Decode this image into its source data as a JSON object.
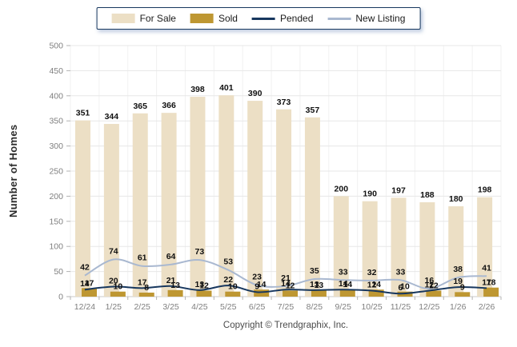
{
  "legend": {
    "items": [
      {
        "label": "For Sale",
        "type": "bar",
        "color": "#ECDFC5"
      },
      {
        "label": "Sold",
        "type": "bar",
        "color": "#BE9732"
      },
      {
        "label": "Pended",
        "type": "line",
        "color": "#17375E"
      },
      {
        "label": "New Listing",
        "type": "line",
        "color": "#A9B8D0"
      }
    ]
  },
  "chart_data": {
    "type": "bar+line",
    "categories": [
      "12/24",
      "1/25",
      "2/25",
      "3/25",
      "4/25",
      "5/25",
      "6/25",
      "7/25",
      "8/25",
      "9/25",
      "10/25",
      "11/25",
      "12/25",
      "1/26",
      "2/26"
    ],
    "series": [
      {
        "name": "For Sale",
        "type": "bar",
        "color": "#ECDFC5",
        "values": [
          351,
          344,
          365,
          366,
          398,
          401,
          390,
          373,
          357,
          200,
          190,
          197,
          188,
          180,
          198
        ]
      },
      {
        "name": "Sold",
        "type": "bar",
        "color": "#BE9732",
        "values": [
          17,
          10,
          8,
          13,
          12,
          10,
          14,
          12,
          13,
          14,
          14,
          10,
          12,
          9,
          18
        ]
      },
      {
        "name": "Pended",
        "type": "line",
        "color": "#17375E",
        "values": [
          14,
          20,
          17,
          21,
          13,
          22,
          9,
          14,
          13,
          14,
          12,
          6,
          12,
          19,
          17
        ]
      },
      {
        "name": "New Listing",
        "type": "line",
        "color": "#A9B8D0",
        "values": [
          42,
          74,
          61,
          64,
          73,
          53,
          23,
          21,
          35,
          33,
          32,
          33,
          16,
          38,
          41
        ]
      }
    ],
    "title": "",
    "xlabel": "",
    "ylabel": "Number of Homes",
    "ylim": [
      0,
      500
    ],
    "ytick_step": 50,
    "grid": true,
    "legend_position": "top"
  },
  "footer": {
    "copyright": "Copyright © Trendgraphix, Inc."
  },
  "colors": {
    "grid": "#E7E7E7",
    "vgrid": "#F1F1F1",
    "axis": "#C9C9C9",
    "tick": "#B3B3B3",
    "tick_label": "#7F7F7F",
    "value_label": "#111111"
  }
}
